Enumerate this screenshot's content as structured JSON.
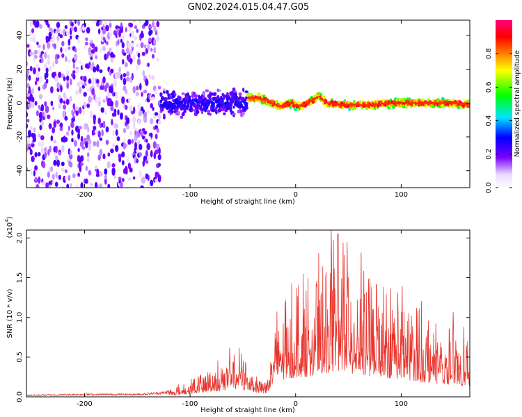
{
  "figure_title": "GN02.2024.015.04.47.G05",
  "chart_data": [
    {
      "type": "heatmap",
      "xlabel": "Height of straight line (km)",
      "ylabel": "Frequency (Hz)",
      "xlim": [
        -255,
        165
      ],
      "ylim": [
        -50,
        49
      ],
      "x_ticks": [
        -200,
        -100,
        0,
        100
      ],
      "y_ticks": [
        -40,
        -20,
        0,
        20,
        40
      ],
      "colorbar": {
        "label": "Normalized spectral amplitude",
        "range": [
          0,
          1
        ],
        "ticks": [
          "0.0",
          "0.2",
          "0.4",
          "0.6",
          "0.8"
        ],
        "colors": [
          "#e9d8ff",
          "#7b00ff",
          "#0000ff",
          "#00e5ff",
          "#00ff00",
          "#ffff00",
          "#ff8000",
          "#ff0000",
          "#ff007a"
        ]
      },
      "regions": [
        {
          "x_range": [
            -255,
            -128
          ],
          "freq_spread": 50,
          "mean_amplitude": 0.1,
          "description_level": "noise"
        },
        {
          "x_range": [
            -128,
            -45
          ],
          "freq_spread": 10,
          "mean_amplitude": 0.25,
          "center_freq": 0
        },
        {
          "x_range": [
            -45,
            165
          ],
          "freq_spread": 3,
          "mean_amplitude": 0.85,
          "center_freq": 0
        }
      ],
      "ridge": {
        "x": [
          -45,
          -35,
          -25,
          -15,
          -5,
          5,
          15,
          22,
          30,
          40,
          55,
          70,
          90,
          110,
          130,
          150,
          165
        ],
        "y": [
          3,
          3,
          1,
          -2,
          0,
          -2,
          1,
          4,
          0,
          -1,
          -1,
          -1,
          0,
          0,
          0,
          0,
          -1
        ]
      }
    },
    {
      "type": "line",
      "xlabel": "Height of straight line (km)",
      "ylabel": "SNR (10 * v/v)",
      "y_exponent": "(x10",
      "y_exponent_power": "4",
      "y_exponent_close": ")",
      "xlim": [
        -255,
        165
      ],
      "ylim": [
        0,
        2.1
      ],
      "x_ticks": [
        -200,
        -100,
        0,
        100
      ],
      "y_ticks": [
        "0.0",
        "0.5",
        "1.0",
        "1.5",
        "2.0"
      ],
      "series": [
        {
          "color": "#e8332b",
          "envelope_x": [
            -255,
            -200,
            -150,
            -125,
            -110,
            -100,
            -90,
            -80,
            -70,
            -60,
            -50,
            -40,
            -30,
            -25,
            -20,
            -15,
            -10,
            -5,
            0,
            10,
            20,
            30,
            38,
            45,
            55,
            65,
            75,
            85,
            95,
            100,
            110,
            120,
            130,
            140,
            150,
            160,
            165
          ],
          "envelope_y": [
            0.02,
            0.03,
            0.03,
            0.05,
            0.1,
            0.15,
            0.2,
            0.25,
            0.3,
            0.4,
            0.35,
            0.25,
            0.15,
            0.3,
            0.6,
            0.8,
            0.85,
            0.9,
            0.95,
            1.0,
            1.1,
            1.2,
            1.3,
            1.25,
            1.1,
            1.05,
            1.0,
            0.95,
            0.9,
            0.85,
            0.8,
            0.72,
            0.7,
            0.65,
            0.6,
            0.55,
            0.5
          ],
          "peak_x": 40,
          "peak_y": 2.05
        }
      ]
    }
  ]
}
